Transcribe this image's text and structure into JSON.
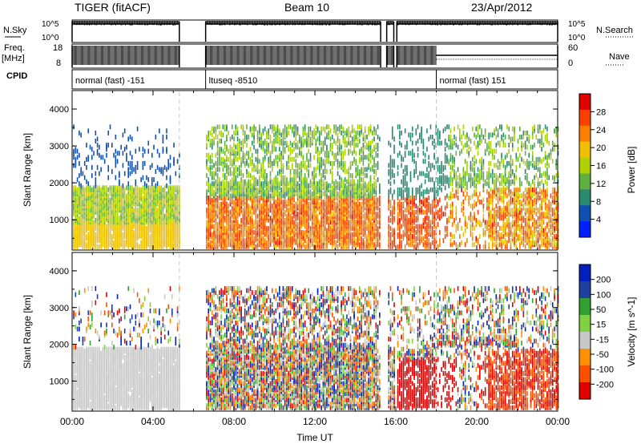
{
  "header": {
    "radar": "TIGER (fitACF)",
    "beam": "Beam 10",
    "date": "23/Apr/2012"
  },
  "strips": {
    "nsky_label": "N.Sky",
    "nsky_ticks": [
      "10^5",
      "10^0"
    ],
    "nsearch_label": "N.Search",
    "nsearch_ticks": [
      "10^5",
      "10^0"
    ],
    "freq_label_1": "Freq.",
    "freq_label_2": "[MHz]",
    "freq_ticks": [
      "18",
      "8"
    ],
    "nave_label": "Nave",
    "nave_ticks": [
      "60",
      "0"
    ],
    "cpid_label": "CPID",
    "cpid_segments": [
      {
        "label": "normal (fast) -151",
        "start": 0.0,
        "end": 5.3
      },
      {
        "label": "ltuseq -8510",
        "start": 6.6,
        "end": 18.0
      },
      {
        "label": "normal (fast) 151",
        "start": 18.0,
        "end": 24.0
      }
    ]
  },
  "chart_data": [
    {
      "type": "heatmap",
      "ylabel": "Slant Range [km]",
      "ylim": [
        180,
        4500
      ],
      "yticks": [
        1000,
        2000,
        3000,
        4000
      ],
      "xlim": [
        0,
        24
      ],
      "colorbar_label": "Power [dB]",
      "colorbar_ticks": [
        "28",
        "24",
        "20",
        "16",
        "12",
        "8",
        "4"
      ],
      "colorbar_colors": [
        "#e00000",
        "#ff4000",
        "#ff8000",
        "#f0c000",
        "#b0d000",
        "#60b040",
        "#2a8a70",
        "#1050b0",
        "#0020ff"
      ],
      "data_gaps_ut": [
        [
          5.3,
          6.6
        ],
        [
          15.25,
          15.55
        ],
        [
          15.9,
          16.05
        ]
      ]
    },
    {
      "type": "heatmap",
      "ylabel": "Slant Range [km]",
      "ylim": [
        180,
        4500
      ],
      "yticks": [
        1000,
        2000,
        3000,
        4000
      ],
      "xlim": [
        0,
        24
      ],
      "xlabel": "Time UT",
      "xticks": [
        "00:00",
        "04:00",
        "08:00",
        "12:00",
        "16:00",
        "20:00",
        "00:00"
      ],
      "colorbar_label": "Velocity [m s^-1]",
      "colorbar_ticks": [
        "200",
        "100",
        "50",
        "15",
        "-15",
        "-50",
        "-100",
        "-200"
      ],
      "colorbar_colors": [
        "#0020c0",
        "#2040a0",
        "#30a030",
        "#80d040",
        "#c8c8c8",
        "#ff9000",
        "#ff5000",
        "#e00000"
      ],
      "data_gaps_ut": [
        [
          5.3,
          6.6
        ],
        [
          15.25,
          15.55
        ],
        [
          15.9,
          16.05
        ]
      ]
    }
  ]
}
